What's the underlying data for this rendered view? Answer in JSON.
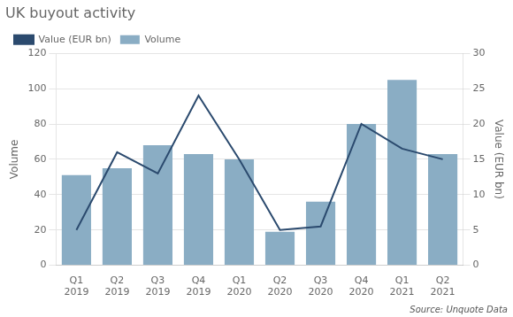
{
  "chart_data": {
    "type": "bar",
    "title": "UK buyout activity",
    "categories": [
      "Q1\n2019",
      "Q2\n2019",
      "Q3\n2019",
      "Q4\n2019",
      "Q1\n2020",
      "Q2\n2020",
      "Q3\n2020",
      "Q4\n2020",
      "Q1\n2021",
      "Q2\n2021"
    ],
    "series": [
      {
        "name": "Volume",
        "color": "#8aadc4",
        "values": [
          51,
          55,
          68,
          63,
          60,
          19,
          36,
          80,
          105,
          63
        ]
      },
      {
        "name": "Value (EUR bn)",
        "type": "line",
        "axis": "y2",
        "color": "#2b4a6e",
        "values": [
          5,
          16,
          13,
          24,
          15,
          5,
          5.5,
          20,
          16.5,
          15
        ]
      }
    ],
    "ylabel": "Volume",
    "y2label": "Value (EUR bn)",
    "ylim": [
      0,
      120
    ],
    "yticks": [
      0,
      20,
      40,
      60,
      80,
      100,
      120
    ],
    "y2lim": [
      0,
      30
    ],
    "y2ticks": [
      0,
      5,
      10,
      15,
      20,
      25,
      30
    ],
    "grid": true,
    "legend": "upper left",
    "annotations": [
      "Source: Unquote Data"
    ]
  }
}
